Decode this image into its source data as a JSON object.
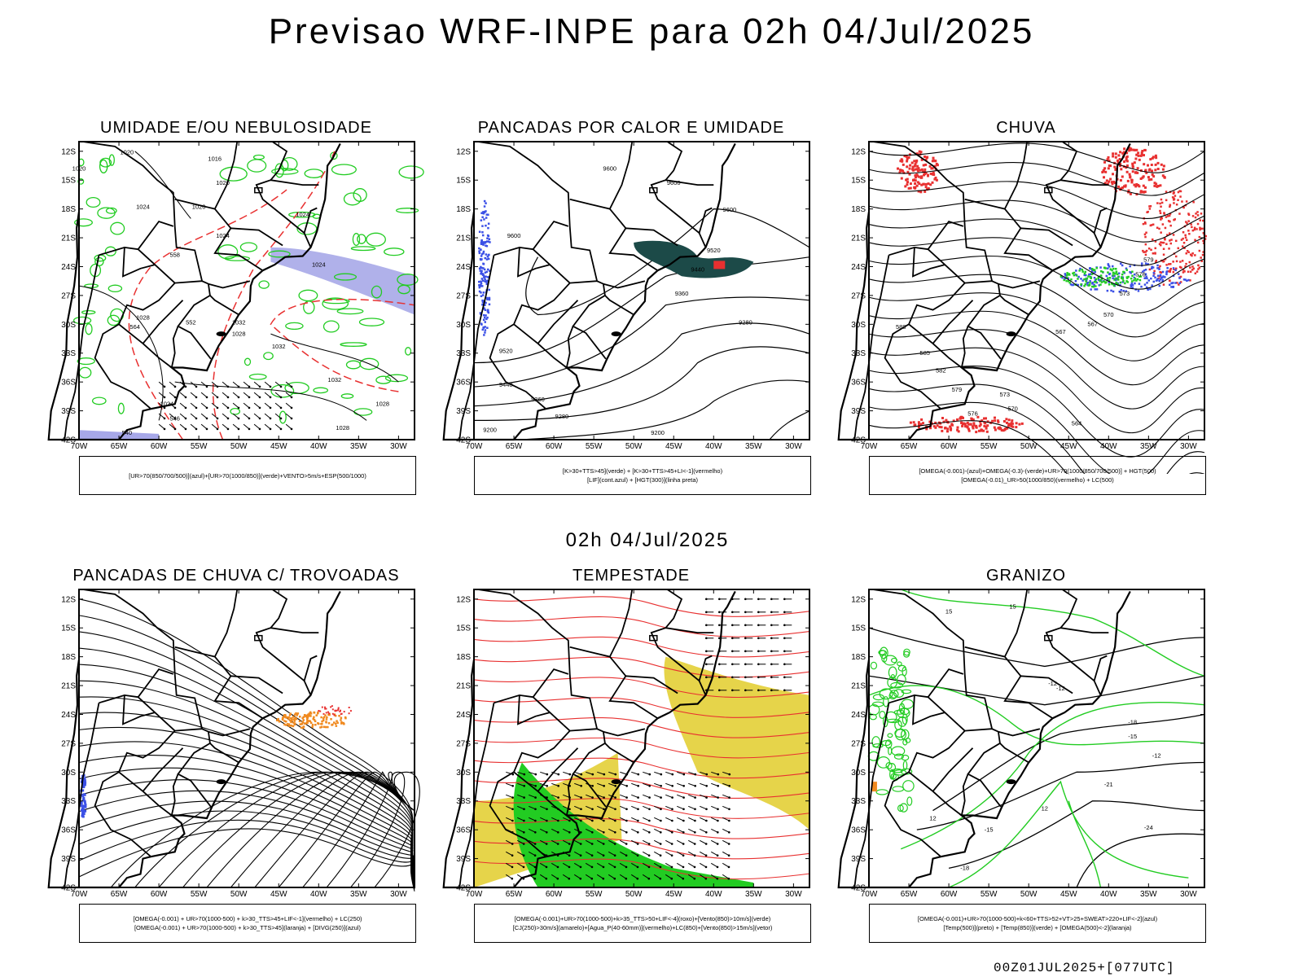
{
  "title": "Previsao WRF-INPE  para 02h 04/Jul/2025",
  "subtitle": "02h 04/Jul/2025",
  "footer": "00Z01JUL2025+[077UTC]",
  "lat_labels": [
    "12S",
    "15S",
    "18S",
    "21S",
    "24S",
    "27S",
    "30S",
    "33S",
    "36S",
    "39S",
    "42S"
  ],
  "lon_labels": [
    "70W",
    "65W",
    "60W",
    "55W",
    "50W",
    "45W",
    "40W",
    "35W",
    "30W"
  ],
  "panels": [
    {
      "title": "UMIDADE E/OU NEBULOSIDADE",
      "legend": [
        "[UR>70(850/700/500)](azul)+[UR>70(1000/850)](verde)+VENTO>5m/s+ESP(500/1000)"
      ],
      "contour_labels": [
        "1020",
        "1016",
        "1020",
        "1024",
        "1020",
        "1024",
        "1024",
        "1024",
        "1028",
        "1032",
        "1032",
        "1032",
        "1028",
        "1028",
        "1024",
        "1020",
        "1028",
        "552",
        "564",
        "558",
        "540",
        "546"
      ]
    },
    {
      "title": "PANCADAS POR CALOR E UMIDADE",
      "legend": [
        "[K>30+TTS>45](verde) + [K>30+TTS>45+LI<-1](vermelho)",
        "[LIF](cont.azul) + [HGT(300)](linha preta)"
      ],
      "contour_labels": [
        "9600",
        "9600",
        "9600",
        "9600",
        "9520",
        "9440",
        "9360",
        "9280",
        "9520",
        "9440",
        "9360",
        "9280",
        "9200",
        "9200"
      ]
    },
    {
      "title": "CHUVA",
      "legend": [
        "[OMEGA(-0.001)-(azul)+OMEGA(-0.3)-(verde)+UR>70(1000/850/700/500)] + HGT(500)",
        "[OMEGA(-0.01)_UR>50(1000/850)(vermelho) + LC(500)"
      ],
      "contour_labels": [
        "588",
        "585",
        "582",
        "579",
        "576",
        "573",
        "570",
        "567",
        "564",
        "567",
        "570",
        "573",
        "576",
        "579"
      ]
    },
    {
      "title": "PANCADAS DE CHUVA C/ TROVOADAS",
      "legend": [
        "[OMEGA(-0.001) + UR>70(1000-500) + k>30_TTS>45+LIF<-1](vermelho) + LC(250)",
        "[OMEGA(-0.001) + UR>70(1000-500) + k>30_TTS>45](laranja) + [DIVG(250)](azul)"
      ],
      "contour_labels": []
    },
    {
      "title": "TEMPESTADE",
      "legend": [
        "[OMEGA(-0.001)+UR>70(1000-500)+k>35_TTS>50+LIF<-4](roxo)+[Vento(850)>10m/s](verde)",
        "[CJ(250)>30m/s](amarelo)+[Agua_P(40-60mm)](vermelho)+LC(850)+[Vento(850)>15m/s](vetor)"
      ],
      "contour_labels": []
    },
    {
      "title": "GRANIZO",
      "legend": [
        "[OMEGA(-0.001)+UR>70(1000-500)+k<60+TTS>52+VT>25+SWEAT>220+LIF<-2](azul)",
        "[Temp(500)](preto) + [Temp(850)](verde) + [OMEGA(500)<-2](laranja)"
      ],
      "contour_labels": [
        "-12",
        "-12",
        "-15",
        "-18",
        "-21",
        "-24",
        "-15",
        "-12",
        "-18",
        "15",
        "15",
        "12",
        "12"
      ]
    }
  ],
  "colors": {
    "red": "#e83030",
    "green": "#22cc22",
    "blue": "#3b50e6",
    "darkteal": "#1c4a48",
    "yellow": "#e6d44a",
    "orange": "#f08a20",
    "lavender": "#a7a8e8"
  }
}
